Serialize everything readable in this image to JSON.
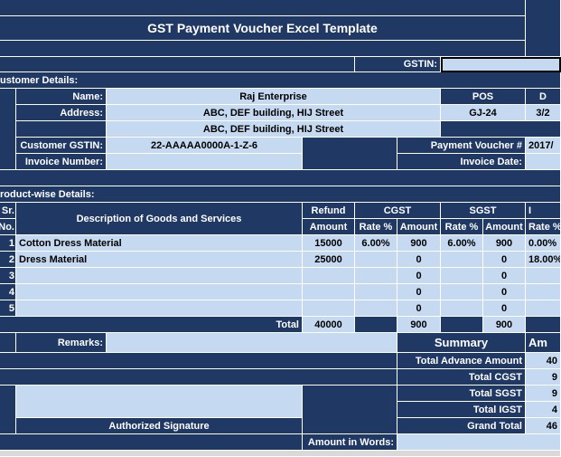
{
  "header": {
    "title": "GST Payment Voucher Excel Template",
    "gstin_label": "GSTIN:"
  },
  "customer": {
    "section_label": "ustomer Details:",
    "name_label": "Name:",
    "name": "Raj Enterprise",
    "address_label": "Address:",
    "address_line1": "ABC, DEF building, HIJ Street",
    "address_line2": "ABC, DEF building, HIJ Street",
    "gstin_label": "Customer GSTIN:",
    "gstin": "22-AAAAA0000A-1-Z-6",
    "invoice_number_label": "Invoice Number:",
    "pos_label": "POS",
    "pos": "GJ-24",
    "payment_voucher_label": "Payment Voucher #",
    "invoice_date_label": "Invoice Date:",
    "right_header": "D",
    "right_value": "3/2",
    "voucher_no": "2017/"
  },
  "products": {
    "section_label": "roduct-wise Details:",
    "headers": {
      "sr_no_1": "Sr.",
      "sr_no_2": "No.",
      "description": "Description of Goods and Services",
      "refund_1": "Refund",
      "refund_2": "Amount",
      "cgst": "CGST",
      "cgst_rate": "Rate %",
      "cgst_amount": "Amount",
      "sgst": "SGST",
      "sgst_rate": "Rate %",
      "sgst_amount": "Amount",
      "igst": "I",
      "igst_rate": "Rate %"
    },
    "rows": [
      [
        1,
        "Cotton Dress Material",
        15000,
        "6.00%",
        900,
        "6.00%",
        900,
        "0.00%"
      ],
      [
        2,
        "Dress Material",
        25000,
        null,
        0,
        null,
        0,
        "18.00%"
      ],
      [
        3,
        null,
        null,
        null,
        0,
        null,
        0,
        null
      ],
      [
        4,
        null,
        null,
        null,
        0,
        null,
        0,
        null
      ],
      [
        5,
        null,
        null,
        null,
        0,
        null,
        0,
        null
      ]
    ],
    "total": {
      "label": "Total",
      "refund": 40000,
      "cgst": 900,
      "sgst": 900
    }
  },
  "remarks_label": "Remarks:",
  "summary": {
    "title": "Summary",
    "amount_header": "Am",
    "rows": [
      [
        "Total Advance Amount",
        "40"
      ],
      [
        "Total CGST",
        "9"
      ],
      [
        "Total SGST",
        "9"
      ],
      [
        "Total IGST",
        "4"
      ],
      [
        "Grand Total",
        "46"
      ]
    ]
  },
  "signature_label": "Authorized Signature",
  "amount_in_words_label": "Amount in Words:"
}
